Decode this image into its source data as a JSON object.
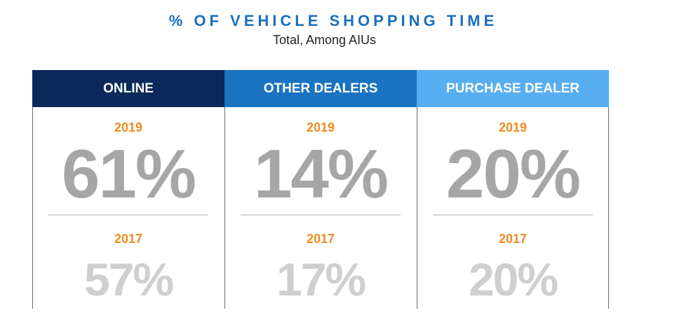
{
  "title": "% OF VEHICLE SHOPPING TIME",
  "subtitle": "Total, Among AIUs",
  "colors": {
    "title": "#1a6fbb",
    "year": "#f08c1e",
    "value_2019": "#a6a6a6",
    "value_2017": "#cfcfcf",
    "header_online": "#0b2a5b",
    "header_other_dealers": "#1a73c1",
    "header_purchase_dealer": "#57aef0"
  },
  "chart_data": {
    "type": "table",
    "title": "% OF VEHICLE SHOPPING TIME",
    "subtitle": "Total, Among AIUs",
    "categories": [
      "ONLINE",
      "OTHER DEALERS",
      "PURCHASE DEALER"
    ],
    "series": [
      {
        "name": "2019",
        "values": [
          61,
          14,
          20
        ]
      },
      {
        "name": "2017",
        "values": [
          57,
          17,
          20
        ]
      }
    ],
    "unit": "%"
  },
  "panels": [
    {
      "header": "ONLINE",
      "year_top": "2019",
      "value_top": "61%",
      "year_bottom": "2017",
      "value_bottom": "57%"
    },
    {
      "header": "OTHER DEALERS",
      "year_top": "2019",
      "value_top": "14%",
      "year_bottom": "2017",
      "value_bottom": "17%"
    },
    {
      "header": "PURCHASE DEALER",
      "year_top": "2019",
      "value_top": "20%",
      "year_bottom": "2017",
      "value_bottom": "20%"
    }
  ]
}
